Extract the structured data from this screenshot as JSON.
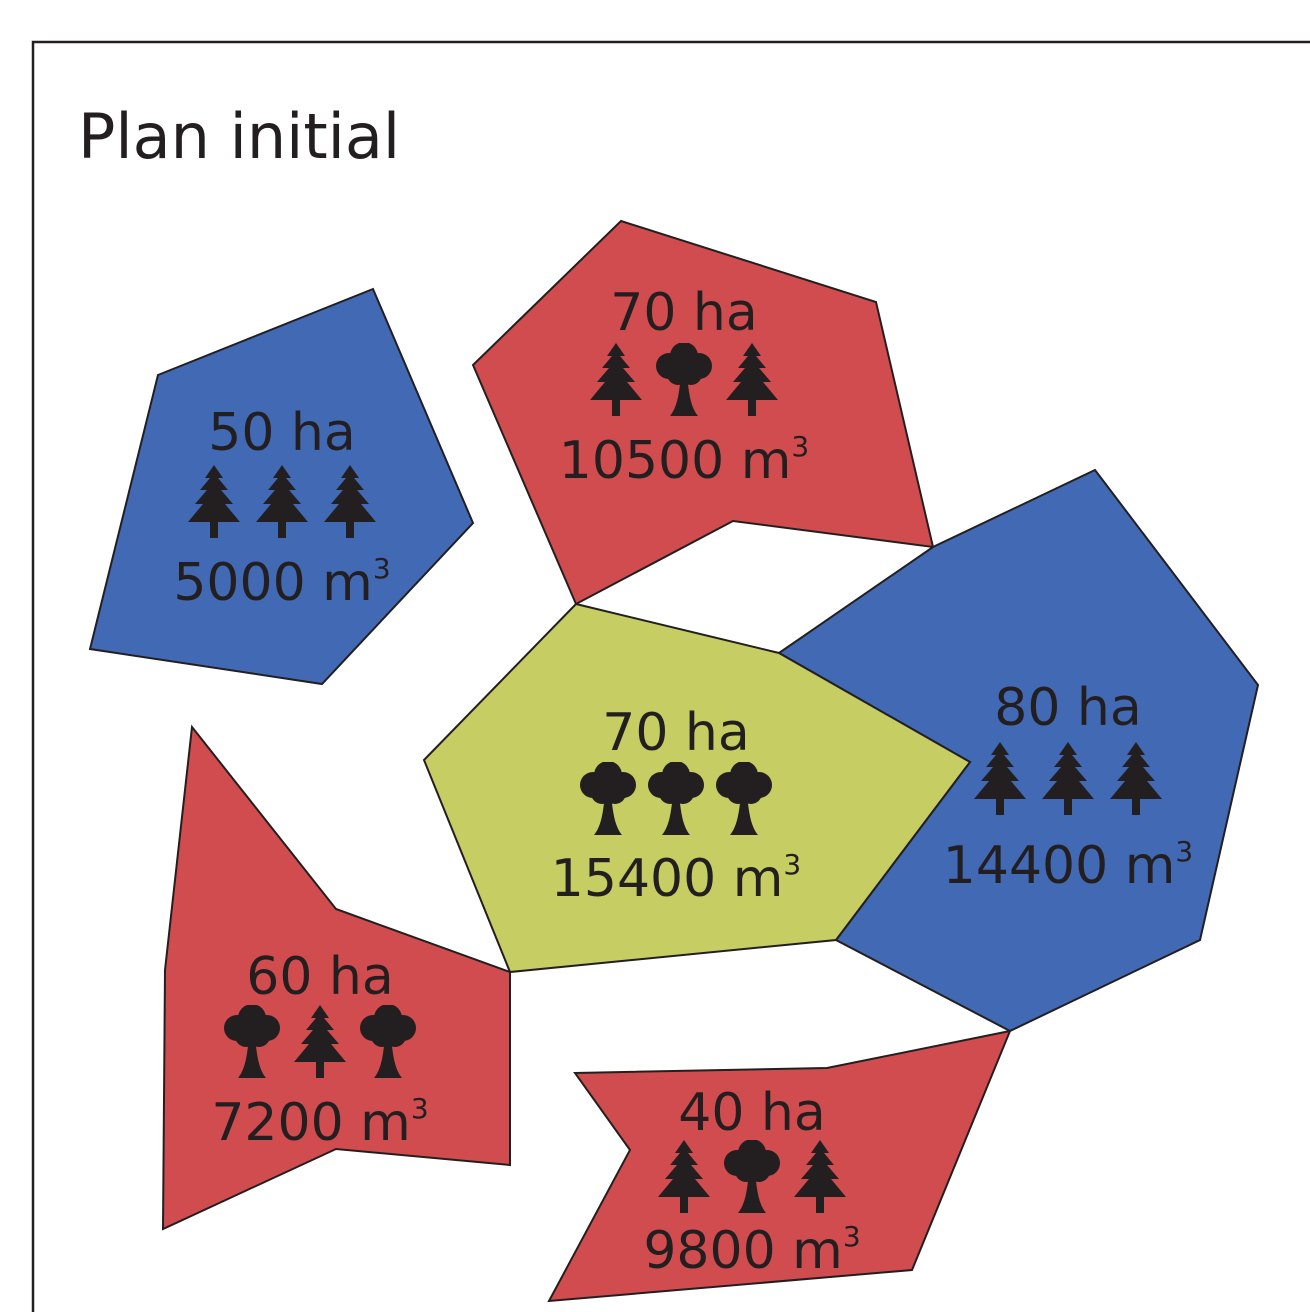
{
  "title": "Plan initial",
  "colors": {
    "resineux": "#4169b4",
    "mixte": "#d14c4e",
    "feuillus": "#c6cd62",
    "ink": "#231f20"
  },
  "stands": [
    {
      "id": "north-west",
      "type": "resineux",
      "area": "50 ha",
      "volume": "5000 m",
      "unit_exp": "3",
      "trees": [
        "conifer-icon",
        "conifer-icon",
        "conifer-icon"
      ]
    },
    {
      "id": "north",
      "type": "mixte",
      "area": "70 ha",
      "volume": "10500 m",
      "unit_exp": "3",
      "trees": [
        "conifer-icon",
        "broadleaf-icon",
        "conifer-icon"
      ]
    },
    {
      "id": "center",
      "type": "feuillus",
      "area": "70 ha",
      "volume": "15400 m",
      "unit_exp": "3",
      "trees": [
        "broadleaf-icon",
        "broadleaf-icon",
        "broadleaf-icon"
      ]
    },
    {
      "id": "east",
      "type": "resineux",
      "area": "80 ha",
      "volume": "14400 m",
      "unit_exp": "3",
      "trees": [
        "conifer-icon",
        "conifer-icon",
        "conifer-icon"
      ]
    },
    {
      "id": "south-west",
      "type": "mixte",
      "area": "60 ha",
      "volume": "7200 m",
      "unit_exp": "3",
      "trees": [
        "broadleaf-icon",
        "conifer-icon",
        "broadleaf-icon"
      ]
    },
    {
      "id": "south",
      "type": "mixte",
      "area": "40 ha",
      "volume": "9800 m",
      "unit_exp": "3",
      "trees": [
        "conifer-icon",
        "broadleaf-icon",
        "conifer-icon"
      ]
    }
  ]
}
